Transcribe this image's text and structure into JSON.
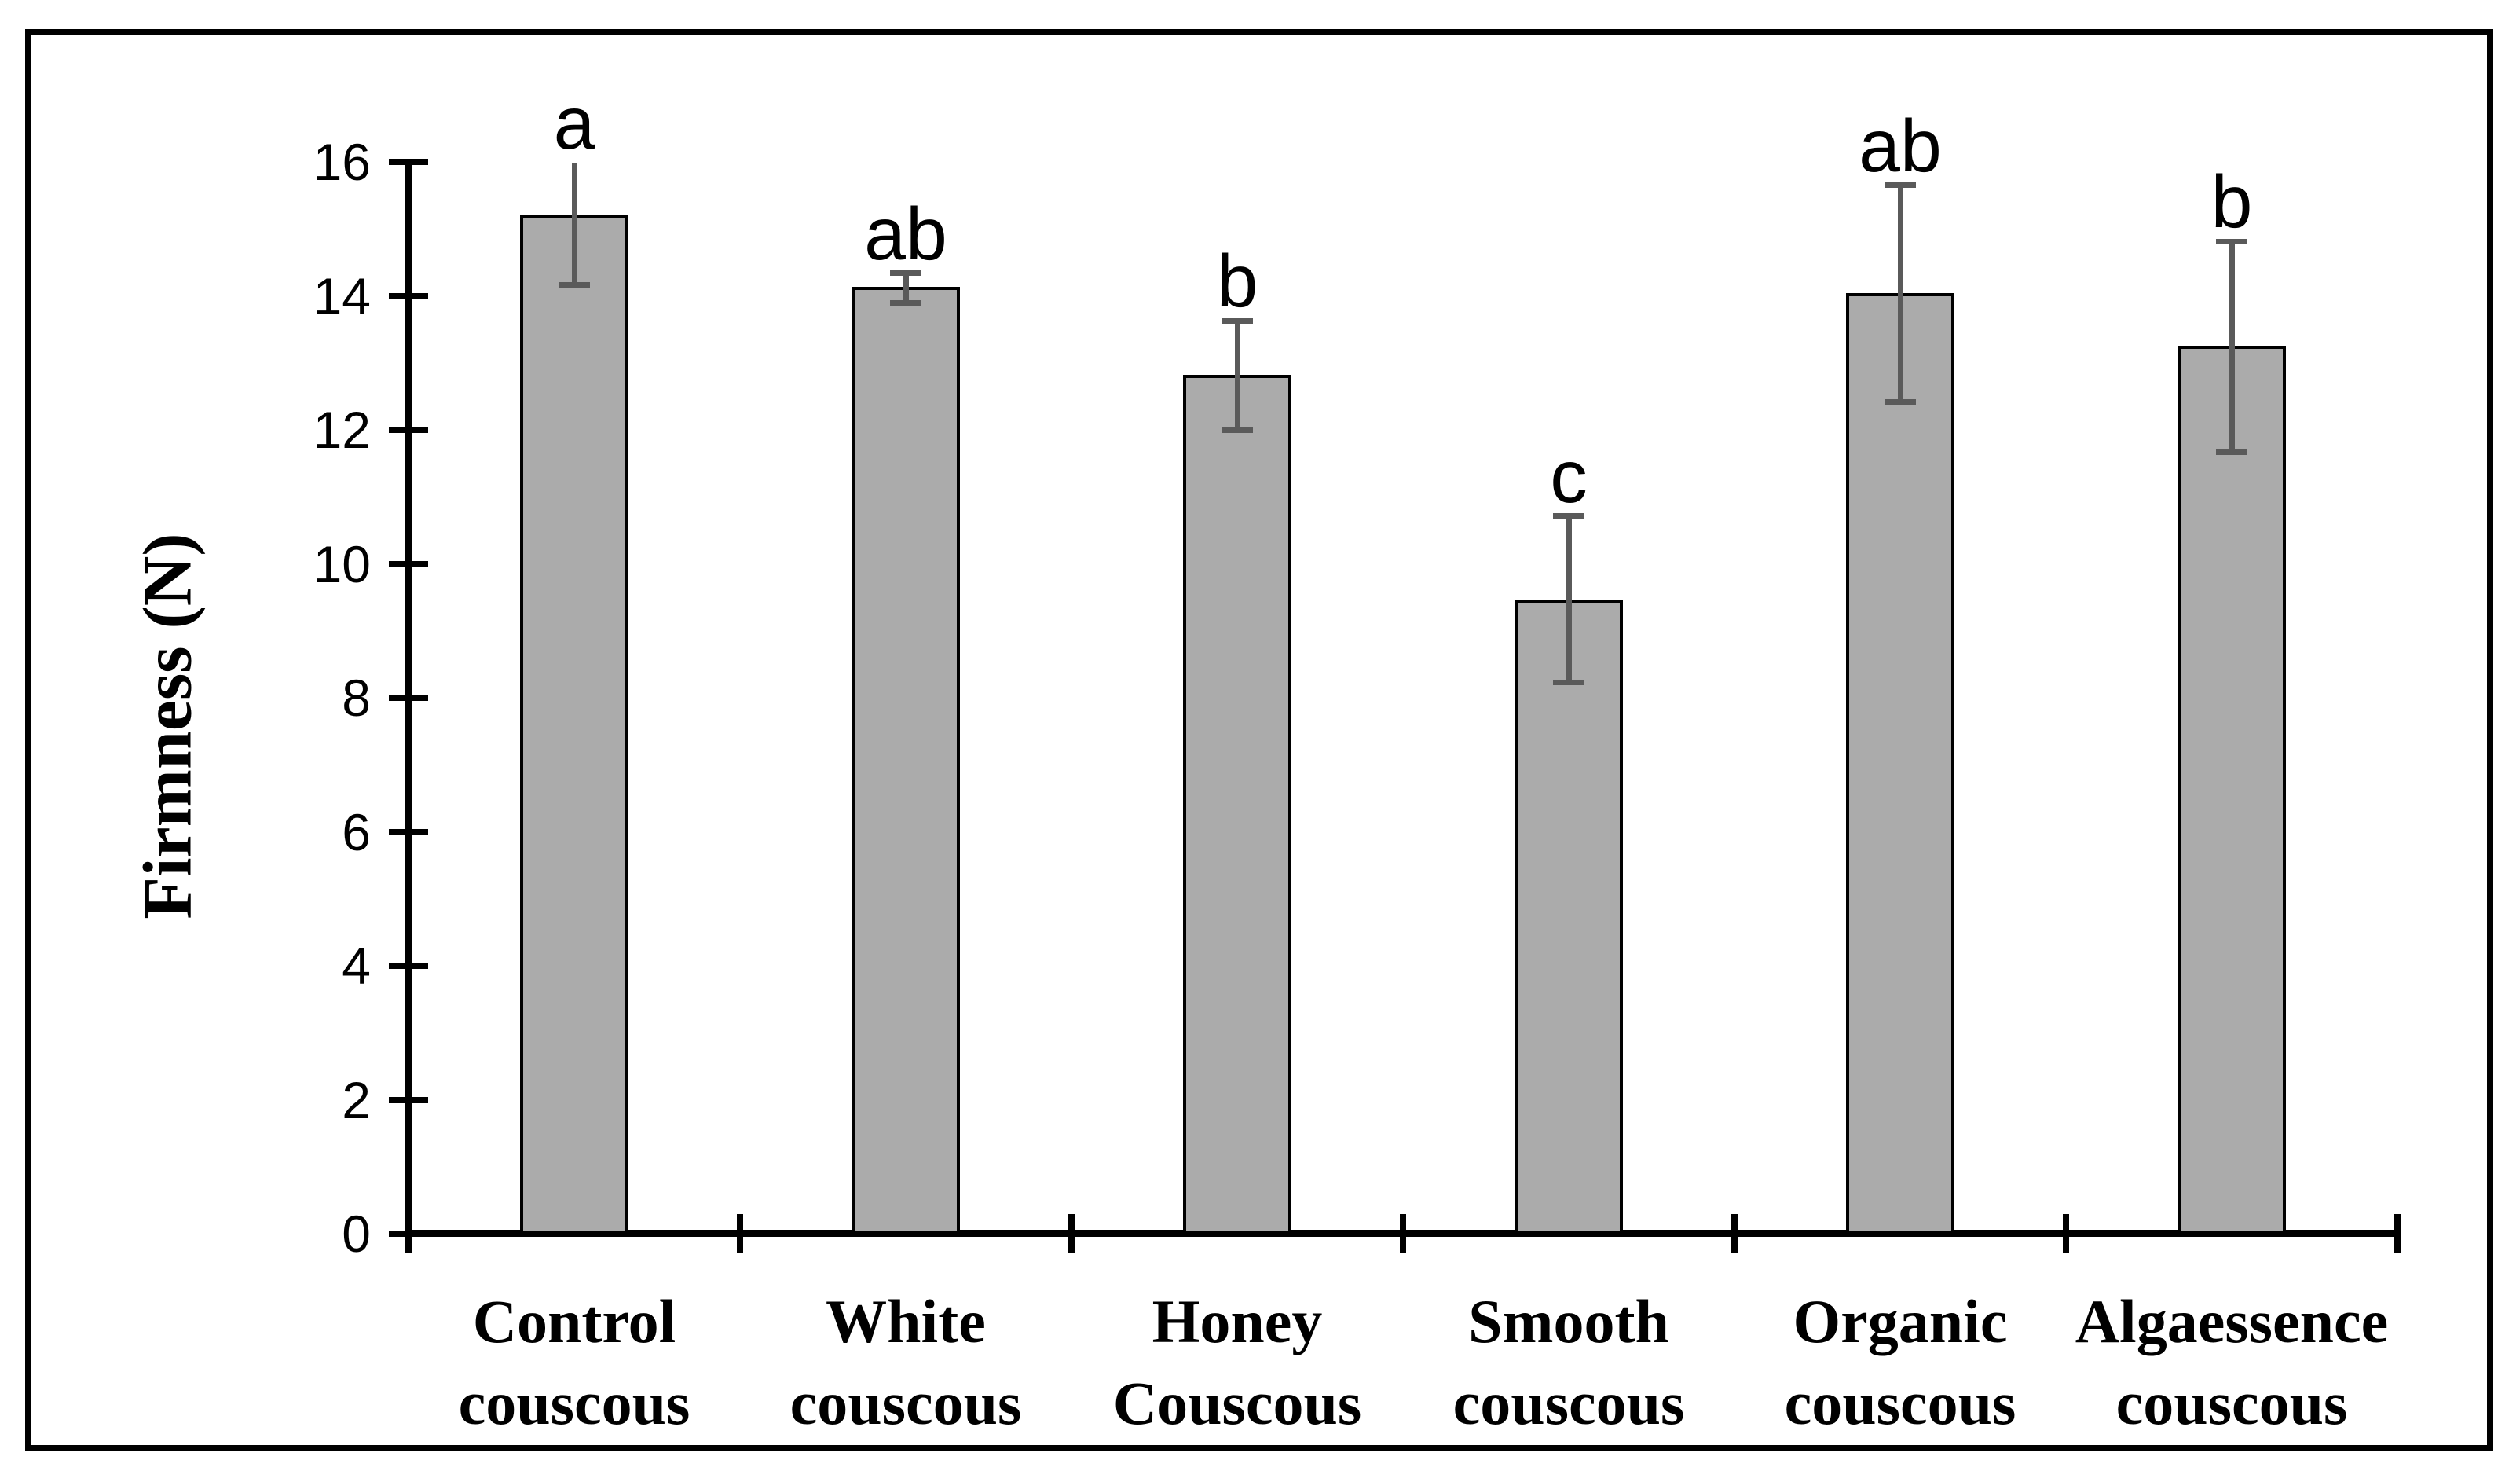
{
  "figure": {
    "ylabel": "Firmness (N)",
    "background_color": "#ffffff",
    "frame_color": "#000000"
  },
  "chart_data": {
    "type": "bar",
    "title": "",
    "xlabel": "",
    "ylabel": "Firmness (N)",
    "ylim": [
      0,
      16
    ],
    "yticks": [
      0,
      2,
      4,
      6,
      8,
      10,
      12,
      14,
      16
    ],
    "grid": false,
    "legend_position": "none",
    "categories": [
      "Control couscous",
      "White couscous",
      "Honey Couscous",
      "Smooth couscous",
      "Organic couscous",
      "Algaessence couscous"
    ],
    "values": [
      15.2,
      14.13,
      12.82,
      9.47,
      14.04,
      13.25
    ],
    "error_bars": [
      {
        "lower": 14.17,
        "upper": 15.99,
        "top_cap": false,
        "bottom_cap": true
      },
      {
        "lower": 13.9,
        "upper": 14.34,
        "top_cap": true,
        "bottom_cap": true
      },
      {
        "lower": 11.99,
        "upper": 13.63,
        "top_cap": true,
        "bottom_cap": true
      },
      {
        "lower": 8.23,
        "upper": 10.71,
        "top_cap": true,
        "bottom_cap": true
      },
      {
        "lower": 12.42,
        "upper": 15.65,
        "top_cap": true,
        "bottom_cap": true
      },
      {
        "lower": 11.67,
        "upper": 14.81,
        "top_cap": true,
        "bottom_cap": true
      }
    ],
    "significance_letters": [
      "a",
      "ab",
      "b",
      "c",
      "ab",
      "b"
    ],
    "bar_fill_color": "#ababab",
    "bar_border_color": "#000000",
    "error_bar_color": "#5a5a5a",
    "axis_color": "#000000"
  }
}
